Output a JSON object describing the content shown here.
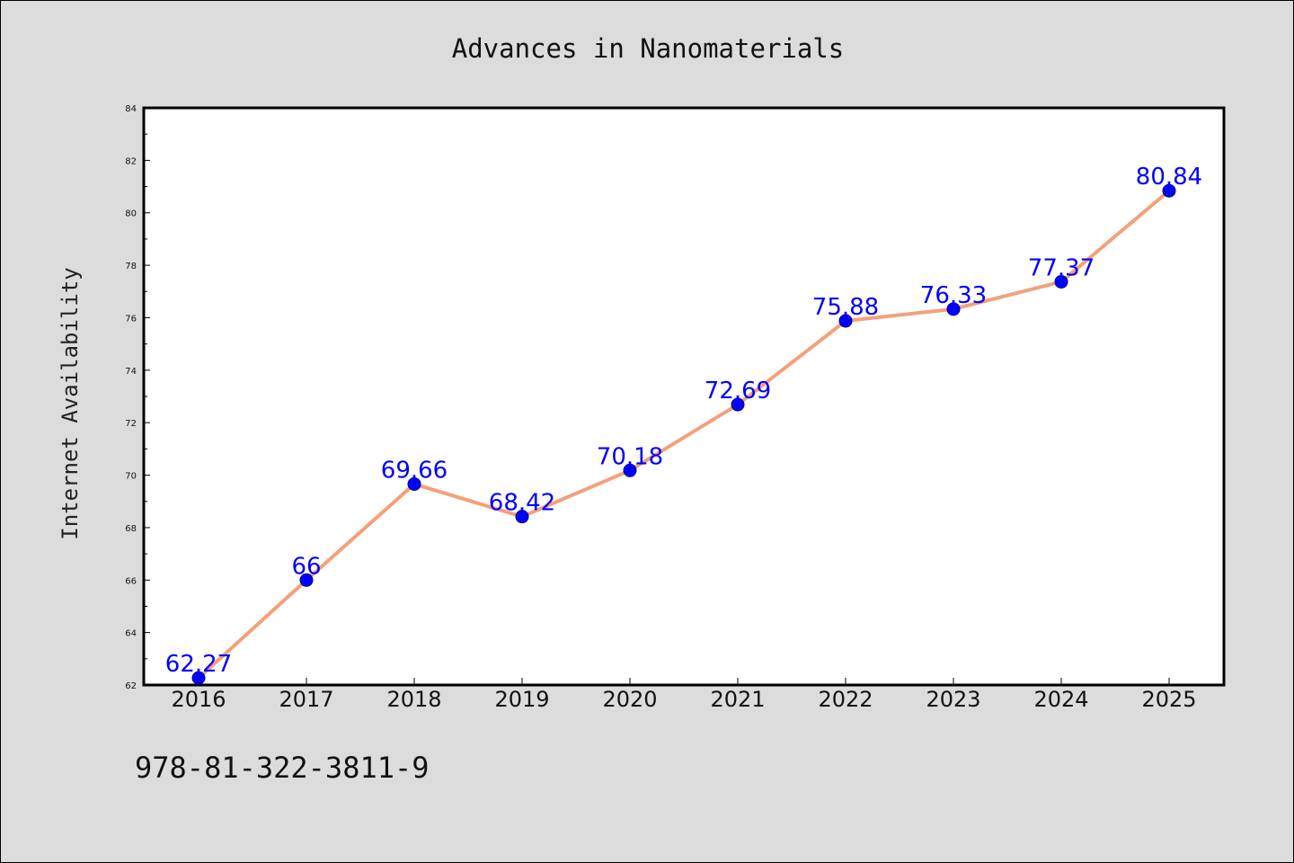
{
  "chart_data": {
    "type": "line",
    "title": "Advances in Nanomaterials",
    "xlabel": "",
    "ylabel": "Internet Availability",
    "categories": [
      "2016",
      "2017",
      "2018",
      "2019",
      "2020",
      "2021",
      "2022",
      "2023",
      "2024",
      "2025"
    ],
    "series": [
      {
        "values": [
          62.27,
          66,
          69.66,
          68.42,
          70.18,
          72.69,
          75.88,
          76.33,
          77.37,
          80.84
        ],
        "data_labels": [
          "62.27",
          "66",
          "69.66",
          "68.42",
          "70.18",
          "72.69",
          "75.88",
          "76.33",
          "77.37",
          "80.84"
        ]
      }
    ],
    "ylim": [
      62,
      84
    ],
    "y_ticks": [
      "62",
      "64",
      "66",
      "68",
      "70",
      "72",
      "74",
      "76",
      "78",
      "80",
      "82",
      "84"
    ],
    "grid": false,
    "legend": "none",
    "line_color": "#f4a07a",
    "marker_color": "#0000ff",
    "label_color": "#0000ff"
  },
  "footer": {
    "isbn": "978-81-322-3811-9"
  }
}
